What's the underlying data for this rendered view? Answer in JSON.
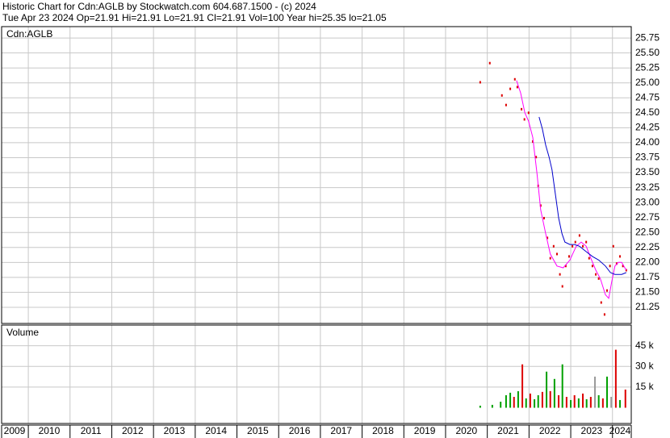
{
  "header": {
    "title": "Historic Chart for Cdn:AGLB by Stockwatch.com 604.687.1500 - (c) 2024",
    "subtitle": "Tue Apr 23 2024  Op=21.91  Hi=21.91  Lo=21.91  Cl=21.91  Vol=100  Year hi=25.35  lo=21.05"
  },
  "chart_data": [
    {
      "type": "line",
      "label": "Cdn:AGLB",
      "grid": true,
      "xlim": [
        2009.36,
        2024.45
      ],
      "xticks": [
        2009,
        2010,
        2011,
        2012,
        2013,
        2014,
        2015,
        2016,
        2017,
        2018,
        2019,
        2020,
        2021,
        2022,
        2023,
        2024
      ],
      "ylim": [
        20.98,
        25.94
      ],
      "yticks": [
        21.25,
        {
          "value": 21.5,
          "label": "21.50"
        },
        21.75,
        {
          "value": 22,
          "label": "22.00"
        },
        22.25,
        {
          "value": 22.5,
          "label": "22.50"
        },
        22.75,
        {
          "value": 23,
          "label": "23.00"
        },
        23.25,
        {
          "value": 23.5,
          "label": "23.50"
        },
        23.75,
        {
          "value": 24,
          "label": "24.00"
        },
        24.25,
        {
          "value": 24.5,
          "label": "24.50"
        },
        24.75,
        {
          "value": 25,
          "label": "25.00"
        },
        25.25,
        {
          "value": 25.5,
          "label": "25.50"
        },
        25.75
      ],
      "series": [
        {
          "style": "dots",
          "color": "#dd0000",
          "x": [
            2020.83,
            2021.06,
            2021.35,
            2021.45,
            2021.55,
            2021.66,
            2021.72,
            2021.82,
            2021.89,
            2021.99,
            2022.09,
            2022.17,
            2022.22,
            2022.28,
            2022.36,
            2022.44,
            2022.51,
            2022.59,
            2022.67,
            2022.74,
            2022.8,
            2022.88,
            2022.96,
            2023.04,
            2023.11,
            2023.21,
            2023.29,
            2023.37,
            2023.44,
            2023.52,
            2023.6,
            2023.67,
            2023.73,
            2023.81,
            2023.87,
            2023.94,
            2024.02,
            2024.1,
            2024.18,
            2024.25,
            2024.33
          ],
          "values": [
            25.01,
            25.33,
            24.79,
            24.63,
            24.9,
            25.06,
            24.93,
            24.56,
            24.39,
            24.5,
            24.02,
            23.76,
            23.28,
            22.95,
            22.74,
            22.41,
            22.07,
            22.27,
            22.14,
            21.8,
            21.6,
            21.94,
            22.1,
            22.27,
            22.34,
            22.45,
            22.27,
            22.34,
            22.07,
            21.94,
            21.8,
            21.73,
            21.33,
            21.13,
            21.53,
            21.94,
            22.27,
            21.98,
            22.1,
            21.94,
            21.87
          ]
        },
        {
          "style": "line",
          "color": "#ff00ff",
          "x": [
            2021.7,
            2021.8,
            2021.9,
            2021.99,
            2022.09,
            2022.19,
            2022.28,
            2022.4,
            2022.51,
            2022.67,
            2022.82,
            2022.98,
            2023.13,
            2023.25,
            2023.37,
            2023.48,
            2023.6,
            2023.71,
            2023.83,
            2023.91,
            2023.98,
            2024.06,
            2024.14,
            2024.22,
            2024.33
          ],
          "values": [
            25.04,
            24.83,
            24.5,
            24.36,
            24.09,
            23.49,
            22.88,
            22.48,
            22.14,
            21.94,
            21.91,
            22.04,
            22.27,
            22.34,
            22.27,
            22.07,
            21.87,
            21.73,
            21.46,
            21.4,
            21.67,
            21.94,
            22.0,
            22.0,
            21.87
          ]
        },
        {
          "style": "line",
          "color": "#0000cc",
          "x": [
            2022.24,
            2022.32,
            2022.4,
            2022.48,
            2022.55,
            2022.63,
            2022.71,
            2022.79,
            2022.86,
            2022.98,
            2023.09,
            2023.21,
            2023.37,
            2023.52,
            2023.67,
            2023.83,
            2023.95,
            2024.06,
            2024.22,
            2024.33
          ],
          "values": [
            24.43,
            24.23,
            23.96,
            23.76,
            23.55,
            23.15,
            22.74,
            22.48,
            22.34,
            22.3,
            22.3,
            22.27,
            22.18,
            22.1,
            22.04,
            21.94,
            21.83,
            21.8,
            21.8,
            21.83
          ]
        }
      ]
    },
    {
      "type": "bar",
      "label": "Volume",
      "grid": true,
      "xlim": [
        2009.36,
        2024.45
      ],
      "xticks": [
        2009,
        2010,
        2011,
        2012,
        2013,
        2014,
        2015,
        2016,
        2017,
        2018,
        2019,
        2020,
        2021,
        2022,
        2023,
        2024
      ],
      "ylim": [
        0,
        60000
      ],
      "yticks": [
        {
          "value": 15000,
          "label": "15 k"
        },
        {
          "value": 30000,
          "label": "30 k"
        },
        {
          "value": 45000,
          "label": "45 k"
        }
      ],
      "x": [
        2020.83,
        2021.12,
        2021.32,
        2021.45,
        2021.55,
        2021.64,
        2021.74,
        2021.84,
        2021.93,
        2022.03,
        2022.13,
        2022.22,
        2022.32,
        2022.42,
        2022.51,
        2022.61,
        2022.71,
        2022.8,
        2022.9,
        2023.0,
        2023.09,
        2023.19,
        2023.29,
        2023.38,
        2023.48,
        2023.58,
        2023.67,
        2023.77,
        2023.87,
        2023.97,
        2024.08,
        2024.18,
        2024.31
      ],
      "values": [
        1500,
        2100,
        4400,
        9100,
        10900,
        7900,
        12000,
        31500,
        6800,
        10300,
        6200,
        9100,
        11500,
        26200,
        12100,
        20900,
        9100,
        31500,
        7900,
        5600,
        9100,
        6800,
        10300,
        6200,
        7900,
        22600,
        9100,
        6800,
        22600,
        7900,
        42100,
        5600,
        13200
      ],
      "colors": [
        "#00a000",
        "#00a000",
        "#00a000",
        "#00a000",
        "#00a000",
        "#dd0000",
        "#00a000",
        "#dd0000",
        "#00a000",
        "#dd0000",
        "#00a000",
        "#00a000",
        "#dd0000",
        "#00a000",
        "#dd0000",
        "#00a000",
        "#dd0000",
        "#00a000",
        "#dd0000",
        "#00a000",
        "#dd0000",
        "#00a000",
        "#dd0000",
        "#00a000",
        "#dd0000",
        "#999999",
        "#00a000",
        "#dd0000",
        "#00a000",
        "#999999",
        "#dd0000",
        "#00a000",
        "#dd0000"
      ]
    }
  ]
}
